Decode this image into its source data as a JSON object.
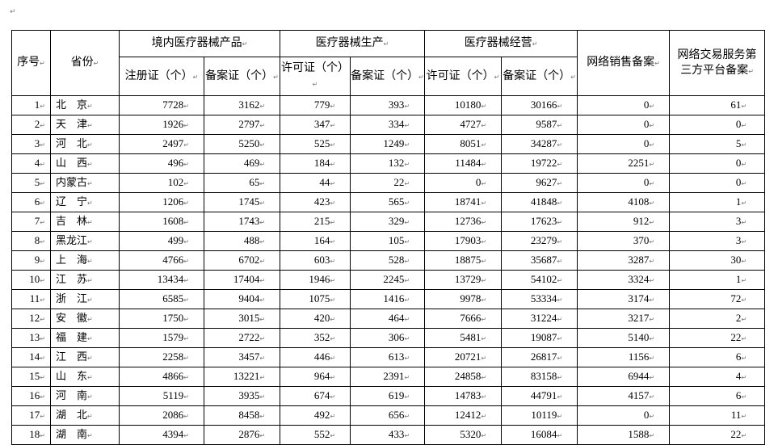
{
  "headers": {
    "seq": "序号",
    "province": "省份",
    "domestic": "境内医疗器械产品",
    "production": "医疗器械生产",
    "business": "医疗器械经营",
    "online_sales": "网络销售备案",
    "platform": "网络交易服务第三方平台备案",
    "registration": "注册证（个）",
    "filing": "备案证（个）",
    "license": "许可证（个）"
  },
  "rows": [
    {
      "seq": "1",
      "province": "北　京",
      "reg": "7728",
      "filing": "3162",
      "prod_license": "779",
      "prod_filing": "393",
      "biz_license": "10180",
      "biz_filing": "30166",
      "online": "0",
      "platform": "61"
    },
    {
      "seq": "2",
      "province": "天　津",
      "reg": "1926",
      "filing": "2797",
      "prod_license": "347",
      "prod_filing": "334",
      "biz_license": "4727",
      "biz_filing": "9587",
      "online": "0",
      "platform": "0"
    },
    {
      "seq": "3",
      "province": "河　北",
      "reg": "2497",
      "filing": "5250",
      "prod_license": "525",
      "prod_filing": "1249",
      "biz_license": "8051",
      "biz_filing": "34287",
      "online": "0",
      "platform": "5"
    },
    {
      "seq": "4",
      "province": "山　西",
      "reg": "496",
      "filing": "469",
      "prod_license": "184",
      "prod_filing": "132",
      "biz_license": "11484",
      "biz_filing": "19722",
      "online": "2251",
      "platform": "0"
    },
    {
      "seq": "5",
      "province": "内蒙古",
      "reg": "102",
      "filing": "65",
      "prod_license": "44",
      "prod_filing": "22",
      "biz_license": "0",
      "biz_filing": "9627",
      "online": "0",
      "platform": "0"
    },
    {
      "seq": "6",
      "province": "辽　宁",
      "reg": "1206",
      "filing": "1745",
      "prod_license": "423",
      "prod_filing": "565",
      "biz_license": "18741",
      "biz_filing": "41848",
      "online": "4108",
      "platform": "1"
    },
    {
      "seq": "7",
      "province": "吉　林",
      "reg": "1608",
      "filing": "1743",
      "prod_license": "215",
      "prod_filing": "329",
      "biz_license": "12736",
      "biz_filing": "17623",
      "online": "912",
      "platform": "3"
    },
    {
      "seq": "8",
      "province": "黑龙江",
      "reg": "499",
      "filing": "488",
      "prod_license": "164",
      "prod_filing": "105",
      "biz_license": "17903",
      "biz_filing": "23279",
      "online": "370",
      "platform": "3"
    },
    {
      "seq": "9",
      "province": "上　海",
      "reg": "4766",
      "filing": "6702",
      "prod_license": "603",
      "prod_filing": "528",
      "biz_license": "18875",
      "biz_filing": "35687",
      "online": "3287",
      "platform": "30"
    },
    {
      "seq": "10",
      "province": "江　苏",
      "reg": "13434",
      "filing": "17404",
      "prod_license": "1946",
      "prod_filing": "2245",
      "biz_license": "13729",
      "biz_filing": "54102",
      "online": "3324",
      "platform": "1"
    },
    {
      "seq": "11",
      "province": "浙　江",
      "reg": "6585",
      "filing": "9404",
      "prod_license": "1075",
      "prod_filing": "1416",
      "biz_license": "9978",
      "biz_filing": "53334",
      "online": "3174",
      "platform": "72"
    },
    {
      "seq": "12",
      "province": "安　徽",
      "reg": "1750",
      "filing": "3015",
      "prod_license": "420",
      "prod_filing": "464",
      "biz_license": "7666",
      "biz_filing": "31224",
      "online": "3217",
      "platform": "2"
    },
    {
      "seq": "13",
      "province": "福　建",
      "reg": "1579",
      "filing": "2722",
      "prod_license": "352",
      "prod_filing": "306",
      "biz_license": "5481",
      "biz_filing": "19087",
      "online": "5140",
      "platform": "22"
    },
    {
      "seq": "14",
      "province": "江　西",
      "reg": "2258",
      "filing": "3457",
      "prod_license": "446",
      "prod_filing": "613",
      "biz_license": "20721",
      "biz_filing": "26817",
      "online": "1156",
      "platform": "6"
    },
    {
      "seq": "15",
      "province": "山　东",
      "reg": "4866",
      "filing": "13221",
      "prod_license": "964",
      "prod_filing": "2391",
      "biz_license": "24858",
      "biz_filing": "83158",
      "online": "6944",
      "platform": "4"
    },
    {
      "seq": "16",
      "province": "河　南",
      "reg": "5119",
      "filing": "3935",
      "prod_license": "674",
      "prod_filing": "619",
      "biz_license": "14783",
      "biz_filing": "44791",
      "online": "4157",
      "platform": "6"
    },
    {
      "seq": "17",
      "province": "湖　北",
      "reg": "2086",
      "filing": "8458",
      "prod_license": "492",
      "prod_filing": "656",
      "biz_license": "12412",
      "biz_filing": "10119",
      "online": "0",
      "platform": "11"
    },
    {
      "seq": "18",
      "province": "湖　南",
      "reg": "4394",
      "filing": "2876",
      "prod_license": "552",
      "prod_filing": "433",
      "biz_license": "5320",
      "biz_filing": "16084",
      "online": "1588",
      "platform": "22"
    }
  ]
}
